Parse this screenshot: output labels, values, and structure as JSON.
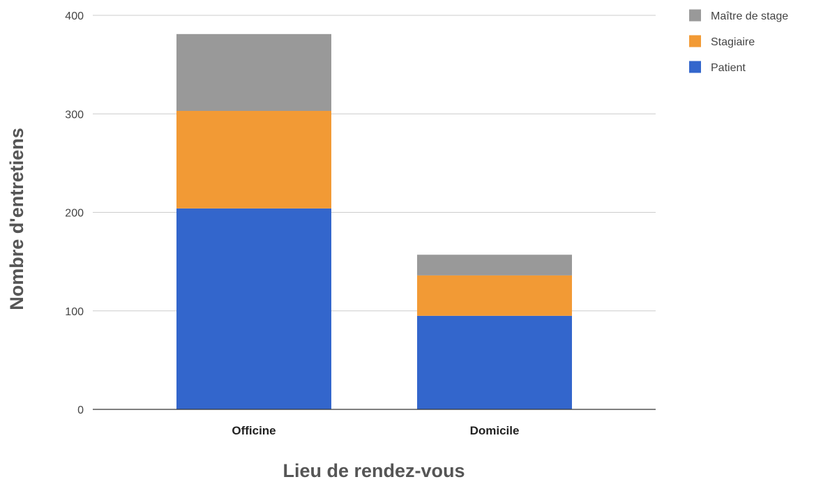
{
  "chart_data": {
    "type": "bar",
    "stacked": true,
    "categories": [
      "Officine",
      "Domicile"
    ],
    "series": [
      {
        "name": "Patient",
        "color": "#3366cc",
        "values": [
          204,
          95
        ]
      },
      {
        "name": "Stagiaire",
        "color": "#f29a35",
        "values": [
          99,
          41
        ]
      },
      {
        "name": "Maître de stage",
        "color": "#999999",
        "values": [
          78,
          21
        ]
      }
    ],
    "xlabel": "Lieu de rendez-vous",
    "ylabel": "Nombre d'entretiens",
    "ylim": [
      0,
      400
    ],
    "yticks": [
      0,
      100,
      200,
      300,
      400
    ],
    "grid": true,
    "legend": {
      "position": "top-right",
      "order": [
        "Maître de stage",
        "Stagiaire",
        "Patient"
      ]
    }
  }
}
